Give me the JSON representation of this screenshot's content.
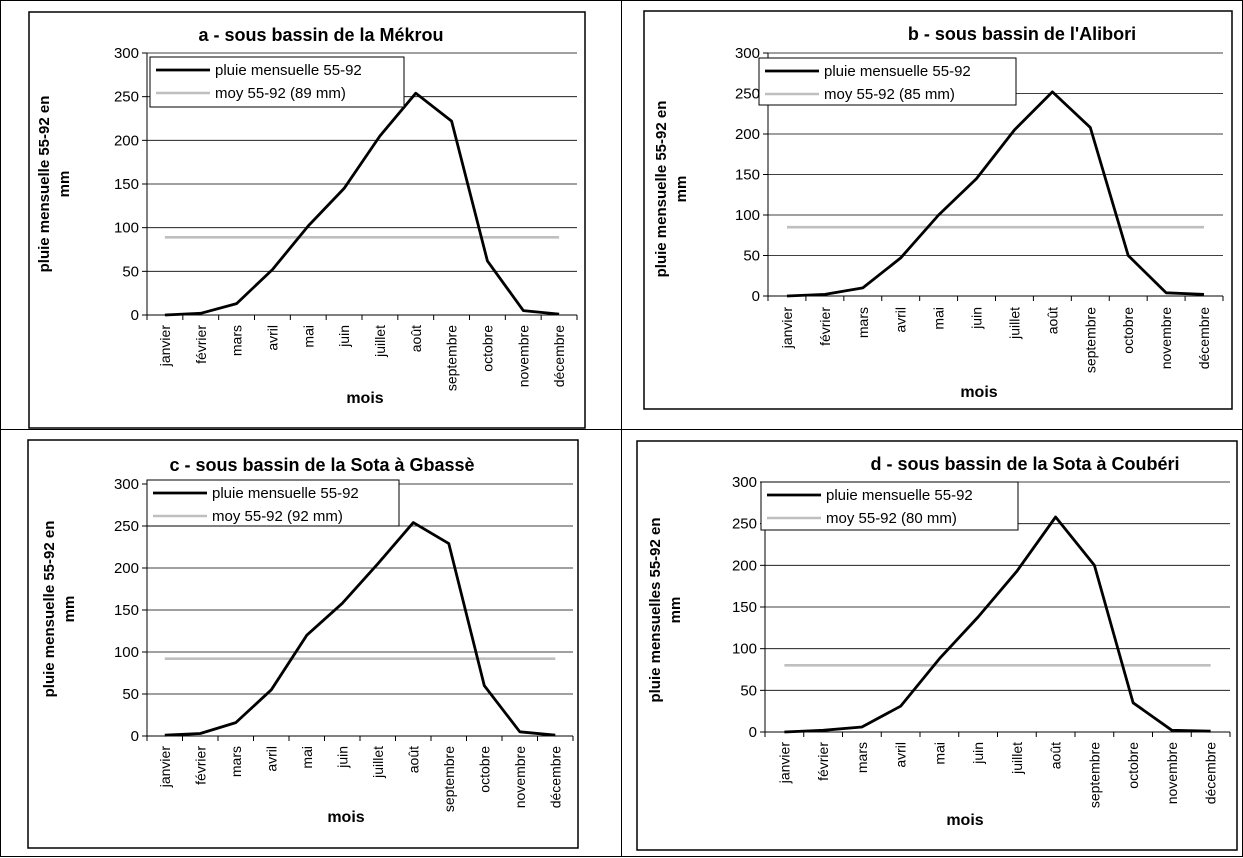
{
  "chart_data": [
    {
      "type": "line",
      "title": "a - sous bassin de la Mékrou",
      "xlabel": "mois",
      "ylabel": "pluie mensuelle 55-92 en mm",
      "ylim": [
        0,
        300
      ],
      "yticks": [
        "0",
        "50",
        "100",
        "150",
        "200",
        "250",
        "300"
      ],
      "categories": [
        "janvier",
        "février",
        "mars",
        "avril",
        "mai",
        "juin",
        "juillet",
        "août",
        "septembre",
        "octobre",
        "novembre",
        "décembre"
      ],
      "grid": true,
      "legend_position": "top-left",
      "series": [
        {
          "name": "pluie mensuelle 55-92",
          "color": "#000000",
          "values": [
            0,
            2,
            13,
            52,
            102,
            145,
            205,
            254,
            222,
            62,
            5,
            1
          ]
        },
        {
          "name": "moy 55-92 (89 mm)",
          "color": "#bfbfbf",
          "values": [
            89,
            89,
            89,
            89,
            89,
            89,
            89,
            89,
            89,
            89,
            89,
            89
          ]
        }
      ]
    },
    {
      "type": "line",
      "title": "b - sous bassin de l'Alibori",
      "xlabel": "mois",
      "ylabel": "pluie mensuelle 55-92 en mm",
      "ylim": [
        0,
        300
      ],
      "yticks": [
        "0",
        "50",
        "100",
        "150",
        "200",
        "250",
        "300"
      ],
      "categories": [
        "janvier",
        "février",
        "mars",
        "avril",
        "mai",
        "juin",
        "juillet",
        "août",
        "septembre",
        "octobre",
        "novembre",
        "décembre"
      ],
      "grid": true,
      "legend_position": "top-left",
      "series": [
        {
          "name": "pluie mensuelle 55-92",
          "color": "#000000",
          "values": [
            0,
            2,
            10,
            47,
            100,
            145,
            205,
            252,
            208,
            50,
            4,
            2
          ]
        },
        {
          "name": "moy 55-92 (85 mm)",
          "color": "#bfbfbf",
          "values": [
            85,
            85,
            85,
            85,
            85,
            85,
            85,
            85,
            85,
            85,
            85,
            85
          ]
        }
      ]
    },
    {
      "type": "line",
      "title": "c - sous bassin de la Sota à Gbassè",
      "xlabel": "mois",
      "ylabel": "pluie mensuelle 55-92 en mm",
      "ylim": [
        0,
        300
      ],
      "yticks": [
        "0",
        "50",
        "100",
        "150",
        "200",
        "250",
        "300"
      ],
      "categories": [
        "janvier",
        "février",
        "mars",
        "avril",
        "mai",
        "juin",
        "juillet",
        "août",
        "septembre",
        "octobre",
        "novembre",
        "décembre"
      ],
      "grid": true,
      "legend_position": "top-left",
      "series": [
        {
          "name": "pluie mensuelle 55-92",
          "color": "#000000",
          "values": [
            1,
            3,
            16,
            55,
            120,
            158,
            205,
            254,
            229,
            60,
            5,
            1
          ]
        },
        {
          "name": "moy 55-92 (92 mm)",
          "color": "#bfbfbf",
          "values": [
            92,
            92,
            92,
            92,
            92,
            92,
            92,
            92,
            92,
            92,
            92,
            92
          ]
        }
      ]
    },
    {
      "type": "line",
      "title": "d - sous bassin de la Sota à Coubéri",
      "xlabel": "mois",
      "ylabel": "pluie mensuelles 55-92 en mm",
      "ylim": [
        0,
        300
      ],
      "yticks": [
        "0",
        "50",
        "100",
        "150",
        "200",
        "250",
        "300"
      ],
      "categories": [
        "janvier",
        "février",
        "mars",
        "avril",
        "mai",
        "juin",
        "juillet",
        "août",
        "septembre",
        "octobre",
        "novembre",
        "décembre"
      ],
      "grid": true,
      "legend_position": "top-left",
      "series": [
        {
          "name": "pluie mensuelle 55-92",
          "color": "#000000",
          "values": [
            0,
            2,
            6,
            31,
            88,
            138,
            193,
            258,
            200,
            35,
            2,
            1
          ]
        },
        {
          "name": "moy 55-92 (80 mm)",
          "color": "#bfbfbf",
          "values": [
            80,
            80,
            80,
            80,
            80,
            80,
            80,
            80,
            80,
            80,
            80,
            80
          ]
        }
      ]
    }
  ]
}
